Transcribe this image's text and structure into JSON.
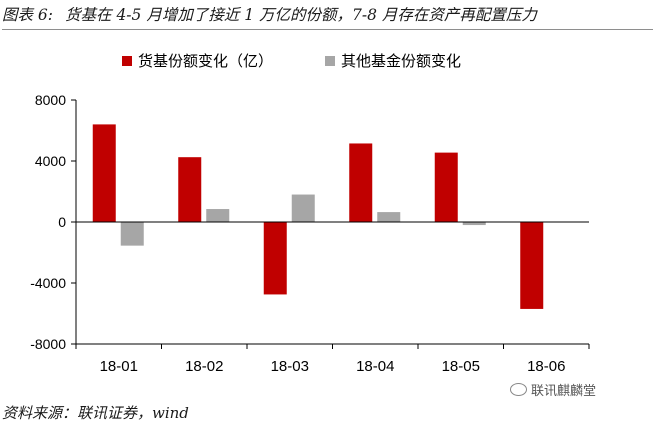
{
  "figure": {
    "label": "图表 6:",
    "title": "货基在 4-5 月增加了接近 1 万亿的份额，7-8 月存在资产再配置压力"
  },
  "source": "资料来源：联讯证券，wind",
  "watermark": "联讯麒麟堂",
  "colors": {
    "series1": "#c00000",
    "series2": "#a6a6a6",
    "axis": "#000000"
  },
  "chart_data": {
    "type": "bar",
    "categories": [
      "18-01",
      "18-02",
      "18-03",
      "18-04",
      "18-05",
      "18-06"
    ],
    "series": [
      {
        "name": "货基份额变化（亿）",
        "values": [
          6400,
          4250,
          -4750,
          5150,
          4550,
          -5700
        ]
      },
      {
        "name": "其他基金份额变化",
        "values": [
          -1550,
          850,
          1800,
          650,
          -200,
          0
        ]
      }
    ],
    "ylim": [
      -8000,
      8000
    ],
    "yticks": [
      "8000",
      "4000",
      "0",
      "-4000",
      "-8000"
    ],
    "legend_position": "top",
    "grid": false
  }
}
